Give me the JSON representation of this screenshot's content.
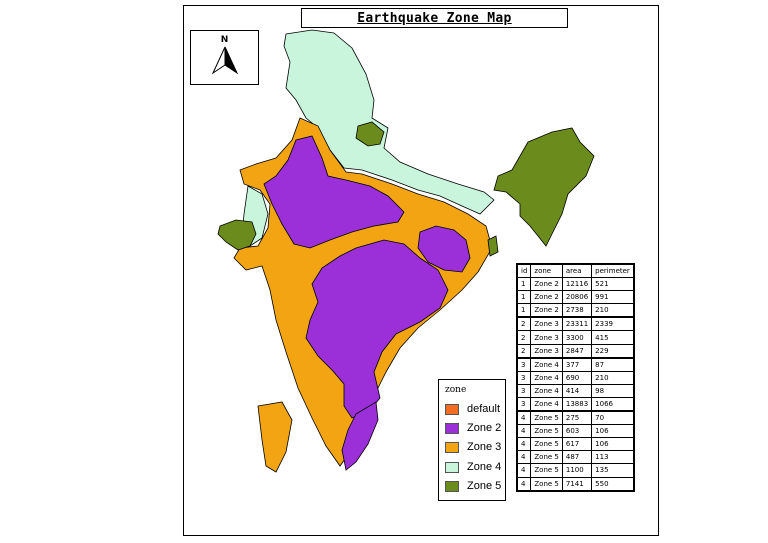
{
  "map": {
    "title": "Earthquake Zone Map",
    "north_arrow_label": "N"
  },
  "legend": {
    "title": "zone",
    "items": [
      {
        "label": "default",
        "color": "#f26d21"
      },
      {
        "label": "Zone 2",
        "color": "#9b30d9"
      },
      {
        "label": "Zone 3",
        "color": "#f2a412"
      },
      {
        "label": "Zone 4",
        "color": "#c8f5dc"
      },
      {
        "label": "Zone 5",
        "color": "#6b8c1c"
      }
    ]
  },
  "table": {
    "headers": [
      "id",
      "zone",
      "area",
      "perimeter"
    ],
    "rows": [
      [
        "1",
        "Zone 2",
        "12116",
        "521"
      ],
      [
        "1",
        "Zone 2",
        "20806",
        "991"
      ],
      [
        "1",
        "Zone 2",
        "2738",
        "210"
      ],
      [
        "2",
        "Zone 3",
        "23311",
        "2339"
      ],
      [
        "2",
        "Zone 3",
        "3300",
        "415"
      ],
      [
        "2",
        "Zone 3",
        "2847",
        "229"
      ],
      [
        "3",
        "Zone 4",
        "377",
        "87"
      ],
      [
        "3",
        "Zone 4",
        "690",
        "210"
      ],
      [
        "3",
        "Zone 4",
        "414",
        "98"
      ],
      [
        "3",
        "Zone 4",
        "13883",
        "1066"
      ],
      [
        "4",
        "Zone 5",
        "275",
        "70"
      ],
      [
        "4",
        "Zone 5",
        "603",
        "106"
      ],
      [
        "4",
        "Zone 5",
        "617",
        "106"
      ],
      [
        "4",
        "Zone 5",
        "487",
        "113"
      ],
      [
        "4",
        "Zone 5",
        "1100",
        "135"
      ],
      [
        "4",
        "Zone 5",
        "7141",
        "550"
      ]
    ]
  }
}
